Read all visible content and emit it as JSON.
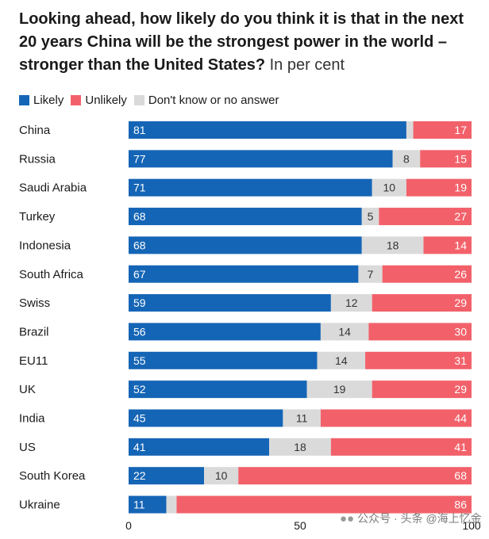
{
  "title": {
    "main": "Looking ahead, how likely do you think it is that in the next 20 years China will be the strongest power in the world – stronger than the United States?",
    "sub": "In per cent"
  },
  "legend": [
    {
      "label": "Likely",
      "color": "#1565b6"
    },
    {
      "label": "Unlikely",
      "color": "#f2616a"
    },
    {
      "label": "Don't know or no answer",
      "color": "#dadada"
    }
  ],
  "chart_data": {
    "type": "bar",
    "orientation": "horizontal",
    "stacked": true,
    "categories": [
      "China",
      "Russia",
      "Saudi Arabia",
      "Turkey",
      "Indonesia",
      "South Africa",
      "Swiss",
      "Brazil",
      "EU11",
      "UK",
      "India",
      "US",
      "South Korea",
      "Ukraine"
    ],
    "series": [
      {
        "name": "Likely",
        "color": "#1565b6",
        "values": [
          81,
          77,
          71,
          68,
          68,
          67,
          59,
          56,
          55,
          52,
          45,
          41,
          22,
          11
        ]
      },
      {
        "name": "Don't know or no answer",
        "color": "#dadada",
        "values": [
          2,
          8,
          10,
          5,
          18,
          7,
          12,
          14,
          14,
          19,
          11,
          18,
          10,
          3
        ]
      },
      {
        "name": "Unlikely",
        "color": "#f2616a",
        "values": [
          17,
          15,
          19,
          27,
          14,
          26,
          29,
          30,
          31,
          29,
          44,
          41,
          68,
          86
        ]
      }
    ],
    "series_labels": [
      [
        "81",
        "77",
        "71",
        "68",
        "68",
        "67",
        "59",
        "56",
        "55",
        "52",
        "45",
        "41",
        "22",
        "11"
      ],
      [
        "",
        "8",
        "10",
        "5",
        "18",
        "7",
        "12",
        "14",
        "14",
        "19",
        "11",
        "18",
        "10",
        ""
      ],
      [
        "17",
        "15",
        "19",
        "27",
        "14",
        "26",
        "29",
        "30",
        "31",
        "29",
        "44",
        "41",
        "68",
        "86"
      ]
    ],
    "x_ticks": [
      "0",
      "50",
      "100"
    ],
    "xlim": [
      0,
      100
    ],
    "legend_position": "top-left",
    "grid": false
  },
  "watermark": {
    "icon": "wechat-icon",
    "text": "公众号 · 头条 @海上忆金"
  }
}
